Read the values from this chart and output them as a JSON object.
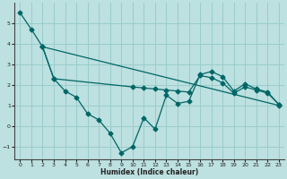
{
  "xlabel": "Humidex (Indice chaleur)",
  "bg_color": "#bde0e0",
  "grid_color": "#99cccc",
  "line_color": "#006666",
  "xlim": [
    -0.5,
    23.5
  ],
  "ylim": [
    -1.6,
    6.0
  ],
  "yticks": [
    -1,
    0,
    1,
    2,
    3,
    4,
    5
  ],
  "xticks": [
    0,
    1,
    2,
    3,
    4,
    5,
    6,
    7,
    8,
    9,
    10,
    11,
    12,
    13,
    14,
    15,
    16,
    17,
    18,
    19,
    20,
    21,
    22,
    23
  ],
  "line1_x": [
    0,
    1,
    2,
    23
  ],
  "line1_y": [
    5.5,
    4.7,
    3.85,
    1.0
  ],
  "line2_x": [
    2,
    3,
    4,
    5,
    6,
    7,
    8,
    9,
    10,
    11,
    12,
    13,
    14,
    15,
    16,
    17,
    18,
    19,
    20,
    21,
    22,
    23
  ],
  "line2_y": [
    3.85,
    2.3,
    1.7,
    1.4,
    0.6,
    0.3,
    -0.35,
    -1.3,
    -1.0,
    0.4,
    -0.15,
    1.5,
    1.1,
    1.2,
    2.5,
    2.65,
    2.4,
    1.7,
    2.05,
    1.8,
    1.65,
    1.05
  ],
  "line3_x": [
    2,
    3,
    10,
    11,
    12,
    13,
    14,
    15,
    16,
    17,
    18,
    19,
    20,
    21,
    22,
    23
  ],
  "line3_y": [
    3.85,
    2.3,
    1.9,
    1.85,
    1.8,
    1.75,
    1.7,
    1.65,
    2.45,
    2.35,
    2.1,
    1.6,
    1.9,
    1.75,
    1.6,
    1.05
  ]
}
